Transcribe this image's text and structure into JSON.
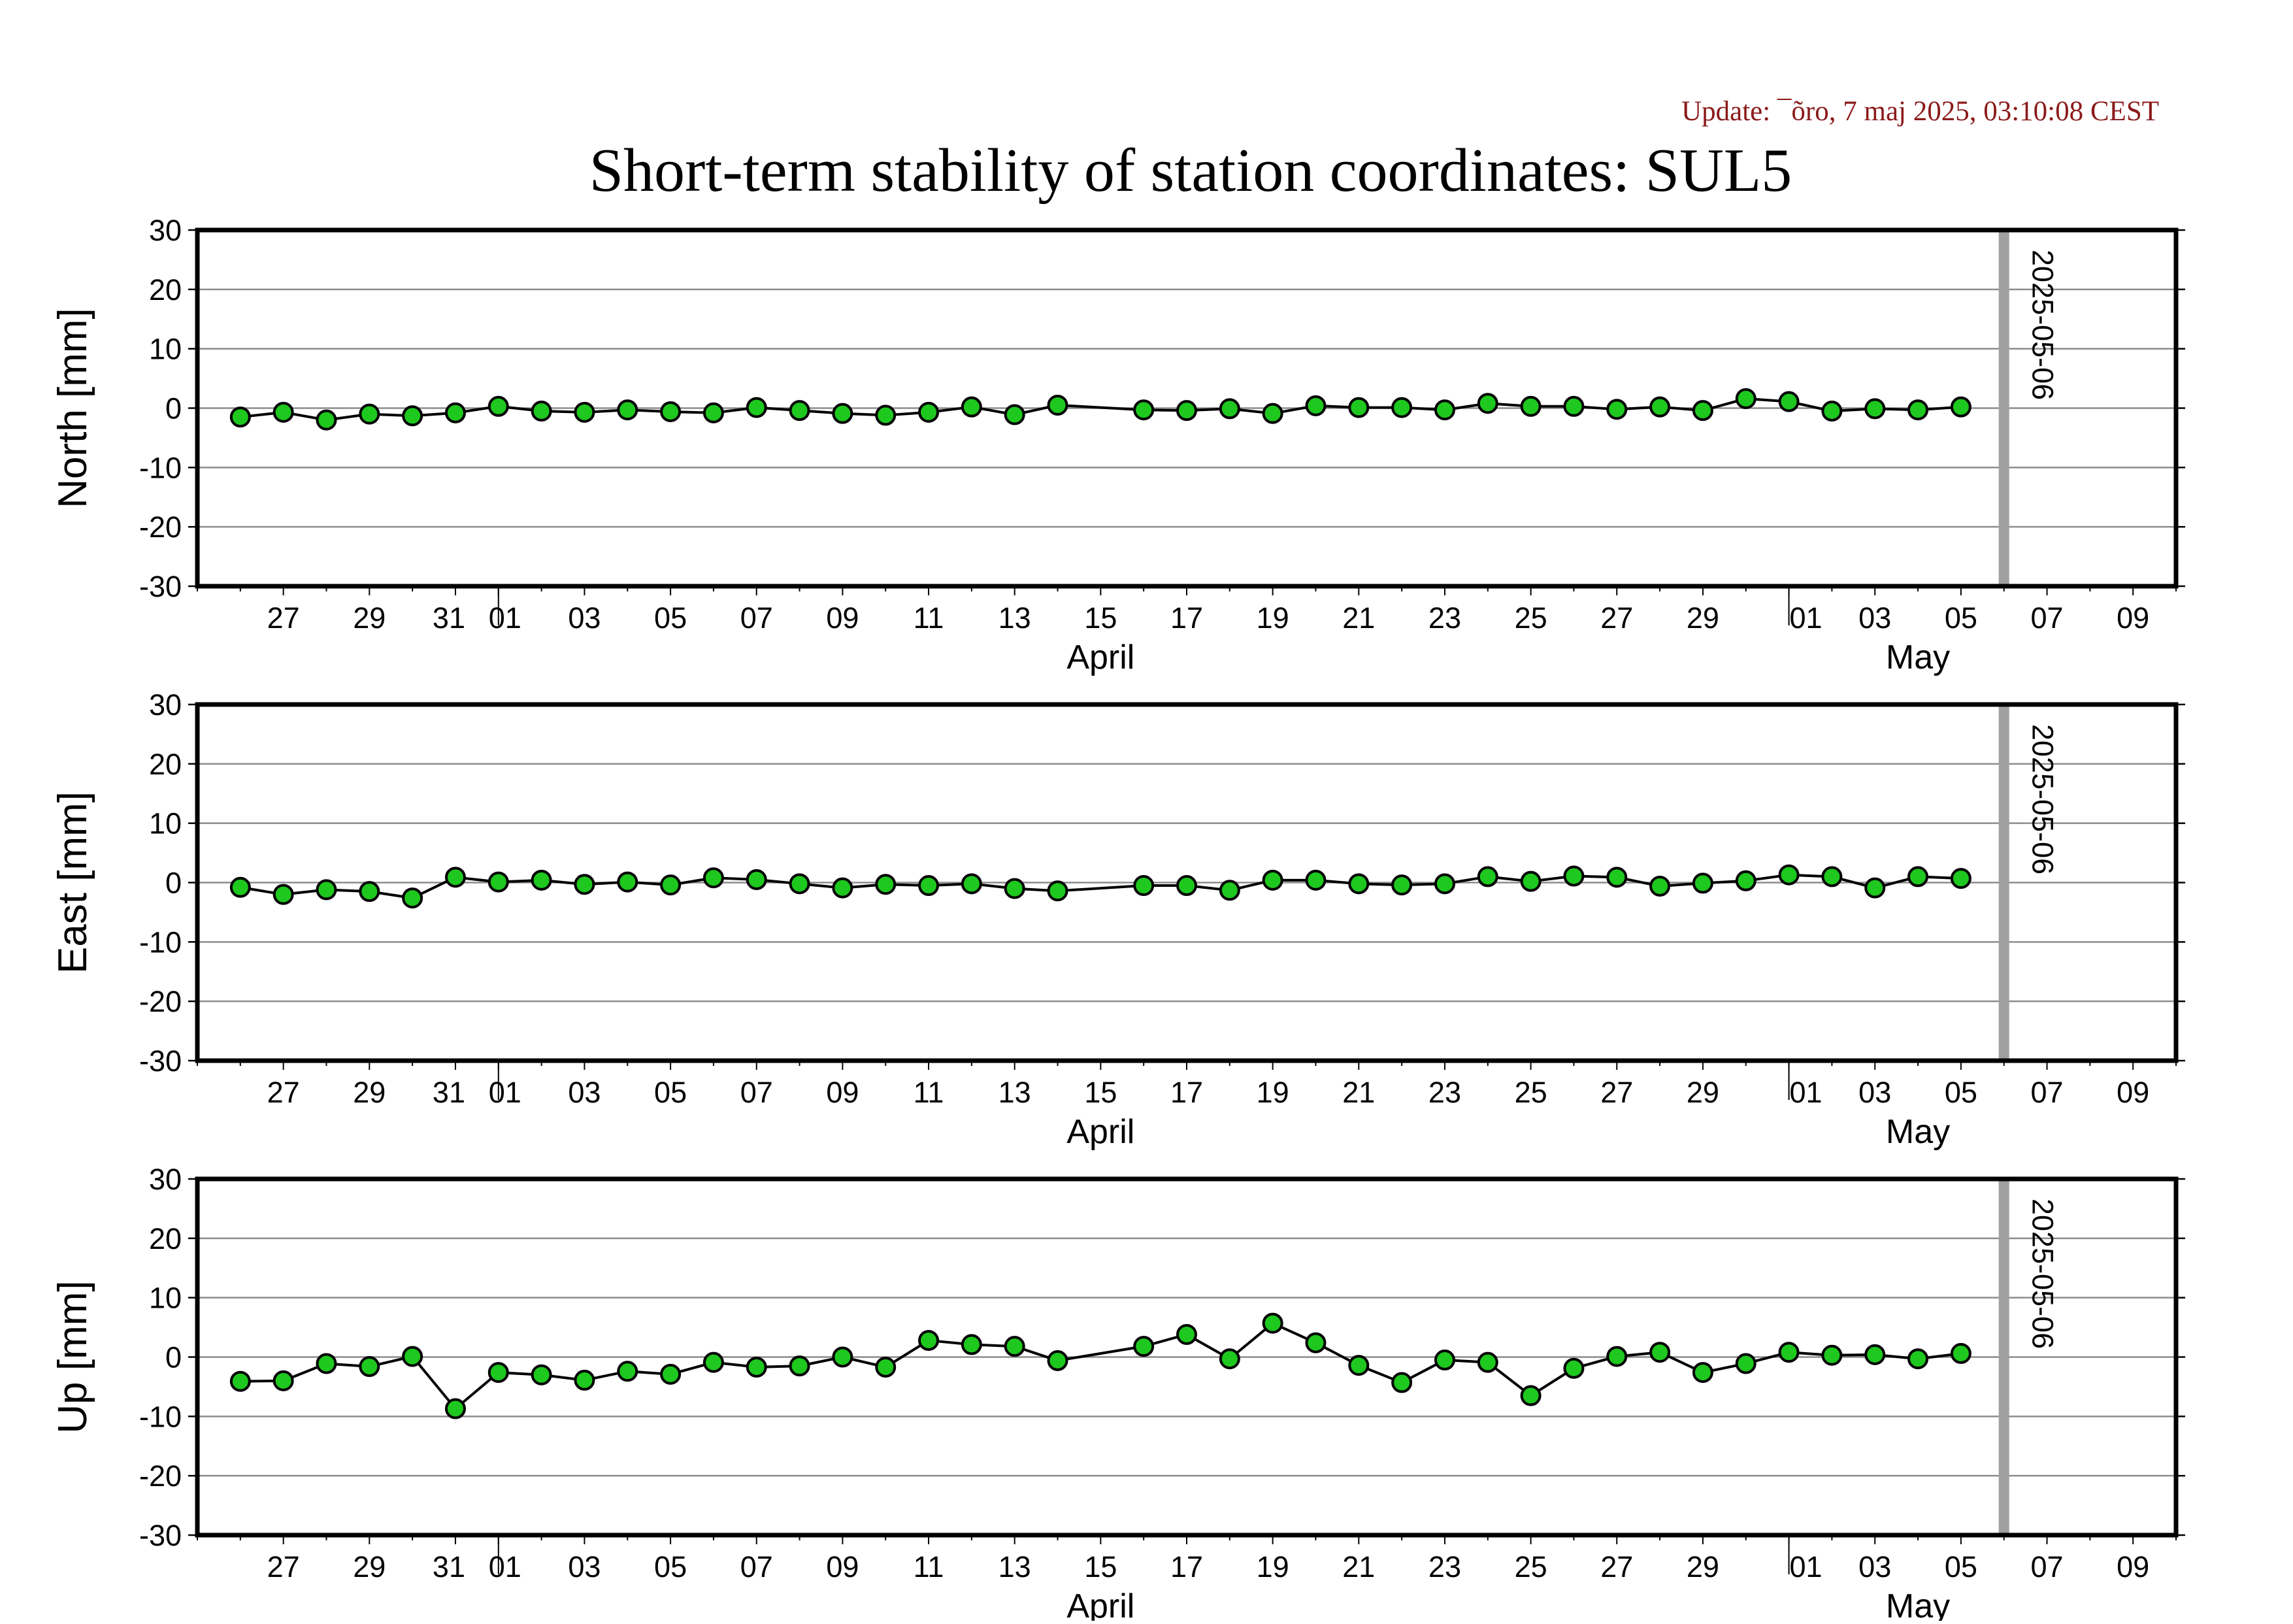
{
  "update_text": "Update: ¯õro, 7 maj 2025, 03:10:08 CEST",
  "chart_data": {
    "type": "line",
    "title": "Short-term stability of station coordinates: SUL5",
    "x_axis": {
      "start": "2025-03-25",
      "end": "2025-05-10",
      "tick_labels": [
        {
          "date": "2025-03-27",
          "label": "27"
        },
        {
          "date": "2025-03-29",
          "label": "29"
        },
        {
          "date": "2025-03-31",
          "label": "31"
        },
        {
          "date": "2025-04-01",
          "label": "01"
        },
        {
          "date": "2025-04-03",
          "label": "03"
        },
        {
          "date": "2025-04-05",
          "label": "05"
        },
        {
          "date": "2025-04-07",
          "label": "07"
        },
        {
          "date": "2025-04-09",
          "label": "09"
        },
        {
          "date": "2025-04-11",
          "label": "11"
        },
        {
          "date": "2025-04-13",
          "label": "13"
        },
        {
          "date": "2025-04-15",
          "label": "15"
        },
        {
          "date": "2025-04-17",
          "label": "17"
        },
        {
          "date": "2025-04-19",
          "label": "19"
        },
        {
          "date": "2025-04-21",
          "label": "21"
        },
        {
          "date": "2025-04-23",
          "label": "23"
        },
        {
          "date": "2025-04-25",
          "label": "25"
        },
        {
          "date": "2025-04-27",
          "label": "27"
        },
        {
          "date": "2025-04-29",
          "label": "29"
        },
        {
          "date": "2025-05-01",
          "label": "01"
        },
        {
          "date": "2025-05-03",
          "label": "03"
        },
        {
          "date": "2025-05-05",
          "label": "05"
        },
        {
          "date": "2025-05-07",
          "label": "07"
        },
        {
          "date": "2025-05-09",
          "label": "09"
        }
      ],
      "month_labels": [
        {
          "date": "2025-04-15",
          "label": "April"
        },
        {
          "date": "2025-05-04",
          "label": "May"
        }
      ],
      "month_boundaries": [
        "2025-04-01",
        "2025-05-01"
      ]
    },
    "marker": {
      "date": "2025-05-06",
      "label": "2025-05-06",
      "color": "#a0a0a0"
    },
    "colors": {
      "point_fill": "#1ec81e",
      "point_stroke": "#000000",
      "line": "#000000",
      "grid": "#8c8c8c",
      "axis": "#000000"
    },
    "panels": [
      {
        "ylabel": "North [mm]",
        "ylim": [
          -30,
          30
        ],
        "yticks": [
          30,
          20,
          10,
          0,
          -10,
          -20,
          -30
        ],
        "grid": true,
        "points": [
          [
            "2025-03-26",
            -1.5
          ],
          [
            "2025-03-27",
            -0.7
          ],
          [
            "2025-03-28",
            -2.0
          ],
          [
            "2025-03-29",
            -1.0
          ],
          [
            "2025-03-30",
            -1.3
          ],
          [
            "2025-03-31",
            -0.8
          ],
          [
            "2025-04-01",
            0.3
          ],
          [
            "2025-04-02",
            -0.5
          ],
          [
            "2025-04-03",
            -0.7
          ],
          [
            "2025-04-04",
            -0.3
          ],
          [
            "2025-04-05",
            -0.6
          ],
          [
            "2025-04-06",
            -0.8
          ],
          [
            "2025-04-07",
            0.1
          ],
          [
            "2025-04-08",
            -0.4
          ],
          [
            "2025-04-09",
            -0.9
          ],
          [
            "2025-04-10",
            -1.2
          ],
          [
            "2025-04-11",
            -0.7
          ],
          [
            "2025-04-12",
            0.2
          ],
          [
            "2025-04-13",
            -1.1
          ],
          [
            "2025-04-14",
            0.5
          ],
          [
            "2025-04-16",
            -0.3
          ],
          [
            "2025-04-17",
            -0.4
          ],
          [
            "2025-04-18",
            -0.1
          ],
          [
            "2025-04-19",
            -0.9
          ],
          [
            "2025-04-20",
            0.4
          ],
          [
            "2025-04-21",
            0.1
          ],
          [
            "2025-04-22",
            0.1
          ],
          [
            "2025-04-23",
            -0.3
          ],
          [
            "2025-04-24",
            0.8
          ],
          [
            "2025-04-25",
            0.3
          ],
          [
            "2025-04-26",
            0.3
          ],
          [
            "2025-04-27",
            -0.2
          ],
          [
            "2025-04-28",
            0.2
          ],
          [
            "2025-04-29",
            -0.4
          ],
          [
            "2025-04-30",
            1.6
          ],
          [
            "2025-05-01",
            1.1
          ],
          [
            "2025-05-02",
            -0.5
          ],
          [
            "2025-05-03",
            -0.1
          ],
          [
            "2025-05-04",
            -0.3
          ],
          [
            "2025-05-05",
            0.2
          ]
        ]
      },
      {
        "ylabel": "East [mm]",
        "ylim": [
          -30,
          30
        ],
        "yticks": [
          30,
          20,
          10,
          0,
          -10,
          -20,
          -30
        ],
        "grid": true,
        "points": [
          [
            "2025-03-26",
            -0.8
          ],
          [
            "2025-03-27",
            -2.0
          ],
          [
            "2025-03-28",
            -1.2
          ],
          [
            "2025-03-29",
            -1.5
          ],
          [
            "2025-03-30",
            -2.6
          ],
          [
            "2025-03-31",
            0.9
          ],
          [
            "2025-04-01",
            0.1
          ],
          [
            "2025-04-02",
            0.4
          ],
          [
            "2025-04-03",
            -0.3
          ],
          [
            "2025-04-04",
            0.1
          ],
          [
            "2025-04-05",
            -0.4
          ],
          [
            "2025-04-06",
            0.8
          ],
          [
            "2025-04-07",
            0.5
          ],
          [
            "2025-04-08",
            -0.2
          ],
          [
            "2025-04-09",
            -0.9
          ],
          [
            "2025-04-10",
            -0.3
          ],
          [
            "2025-04-11",
            -0.5
          ],
          [
            "2025-04-12",
            -0.2
          ],
          [
            "2025-04-13",
            -1.0
          ],
          [
            "2025-04-14",
            -1.4
          ],
          [
            "2025-04-16",
            -0.5
          ],
          [
            "2025-04-17",
            -0.5
          ],
          [
            "2025-04-18",
            -1.3
          ],
          [
            "2025-04-19",
            0.4
          ],
          [
            "2025-04-20",
            0.4
          ],
          [
            "2025-04-21",
            -0.2
          ],
          [
            "2025-04-22",
            -0.4
          ],
          [
            "2025-04-23",
            -0.2
          ],
          [
            "2025-04-24",
            1.0
          ],
          [
            "2025-04-25",
            0.2
          ],
          [
            "2025-04-26",
            1.1
          ],
          [
            "2025-04-27",
            0.9
          ],
          [
            "2025-04-28",
            -0.6
          ],
          [
            "2025-04-29",
            -0.1
          ],
          [
            "2025-04-30",
            0.3
          ],
          [
            "2025-05-01",
            1.3
          ],
          [
            "2025-05-02",
            1.0
          ],
          [
            "2025-05-03",
            -0.9
          ],
          [
            "2025-05-04",
            1.0
          ],
          [
            "2025-05-05",
            0.7
          ]
        ]
      },
      {
        "ylabel": "Up [mm]",
        "ylim": [
          -30,
          30
        ],
        "yticks": [
          30,
          20,
          10,
          0,
          -10,
          -20,
          -30
        ],
        "grid": true,
        "points": [
          [
            "2025-03-26",
            -4.1
          ],
          [
            "2025-03-27",
            -4.0
          ],
          [
            "2025-03-28",
            -1.1
          ],
          [
            "2025-03-29",
            -1.6
          ],
          [
            "2025-03-30",
            0.1
          ],
          [
            "2025-03-31",
            -8.7
          ],
          [
            "2025-04-01",
            -2.6
          ],
          [
            "2025-04-02",
            -3.0
          ],
          [
            "2025-04-03",
            -3.9
          ],
          [
            "2025-04-04",
            -2.4
          ],
          [
            "2025-04-05",
            -2.9
          ],
          [
            "2025-04-06",
            -0.9
          ],
          [
            "2025-04-07",
            -1.7
          ],
          [
            "2025-04-08",
            -1.5
          ],
          [
            "2025-04-09",
            0.0
          ],
          [
            "2025-04-10",
            -1.7
          ],
          [
            "2025-04-11",
            2.8
          ],
          [
            "2025-04-12",
            2.1
          ],
          [
            "2025-04-13",
            1.8
          ],
          [
            "2025-04-14",
            -0.6
          ],
          [
            "2025-04-16",
            1.8
          ],
          [
            "2025-04-17",
            3.8
          ],
          [
            "2025-04-18",
            -0.3
          ],
          [
            "2025-04-19",
            5.7
          ],
          [
            "2025-04-20",
            2.4
          ],
          [
            "2025-04-21",
            -1.4
          ],
          [
            "2025-04-22",
            -4.3
          ],
          [
            "2025-04-23",
            -0.5
          ],
          [
            "2025-04-24",
            -0.9
          ],
          [
            "2025-04-25",
            -6.5
          ],
          [
            "2025-04-26",
            -1.9
          ],
          [
            "2025-04-27",
            0.1
          ],
          [
            "2025-04-28",
            0.8
          ],
          [
            "2025-04-29",
            -2.6
          ],
          [
            "2025-04-30",
            -1.1
          ],
          [
            "2025-05-01",
            0.8
          ],
          [
            "2025-05-02",
            0.3
          ],
          [
            "2025-05-03",
            0.4
          ],
          [
            "2025-05-04",
            -0.3
          ],
          [
            "2025-05-05",
            0.6
          ]
        ]
      }
    ]
  }
}
